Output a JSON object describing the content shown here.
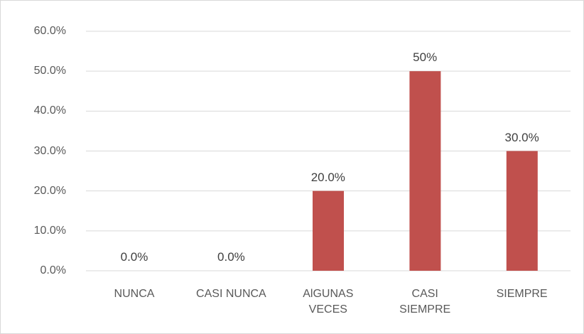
{
  "chart_data": {
    "type": "bar",
    "categories": [
      "NUNCA",
      "CASI NUNCA",
      "AlGUNAS\nVECES",
      "CASI\nSIEMPRE",
      "SIEMPRE"
    ],
    "values": [
      0,
      0,
      20,
      50,
      30
    ],
    "value_labels": [
      "0.0%",
      "0.0%",
      "20.0%",
      "50%",
      "30.0%"
    ],
    "color": "#c0504d",
    "ylim": [
      0,
      60
    ],
    "yticks": [
      {
        "value": 0,
        "label": "0.0%"
      },
      {
        "value": 10,
        "label": "10.0%"
      },
      {
        "value": 20,
        "label": "20.0%"
      },
      {
        "value": 30,
        "label": "30.0%"
      },
      {
        "value": 40,
        "label": "40.0%"
      },
      {
        "value": 50,
        "label": "50.0%"
      },
      {
        "value": 60,
        "label": "60.0%"
      }
    ],
    "grid": true
  }
}
